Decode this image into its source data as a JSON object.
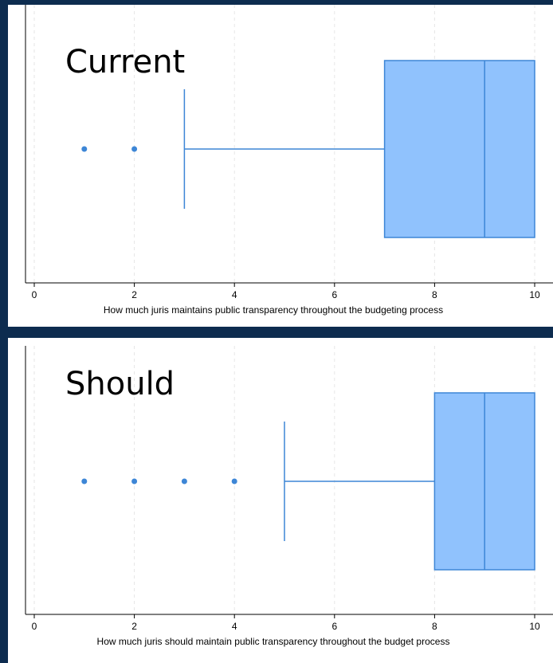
{
  "colors": {
    "background": "#0d2c4f",
    "panel": "#ffffff",
    "box_fill": "#90c2fd",
    "box_stroke": "#3d86d6",
    "whisker": "#3d86d6",
    "outlier": "#3d86d6",
    "grid": "#e6e6e6",
    "axis": "#000000"
  },
  "chart_data": [
    {
      "type": "box",
      "overlay_label": "Current",
      "xlabel": "How much juris maintains public transparency throughout the budgeting process",
      "xlim": [
        0,
        10
      ],
      "xticks": [
        "0",
        "2",
        "4",
        "6",
        "8",
        "10"
      ],
      "grid": "vertical dashed",
      "box": {
        "whisker_low": 3,
        "q1": 7,
        "median": 9,
        "q3": 10,
        "whisker_high": 10
      },
      "outliers": [
        1,
        2
      ]
    },
    {
      "type": "box",
      "overlay_label": "Should",
      "xlabel": "How much juris should maintain public transparency throughout the budget process",
      "xlim": [
        0,
        10
      ],
      "xticks": [
        "0",
        "2",
        "4",
        "6",
        "8",
        "10"
      ],
      "grid": "vertical dashed",
      "box": {
        "whisker_low": 5,
        "q1": 8,
        "median": 9,
        "q3": 10,
        "whisker_high": 10
      },
      "outliers": [
        1,
        2,
        3,
        4
      ]
    }
  ]
}
